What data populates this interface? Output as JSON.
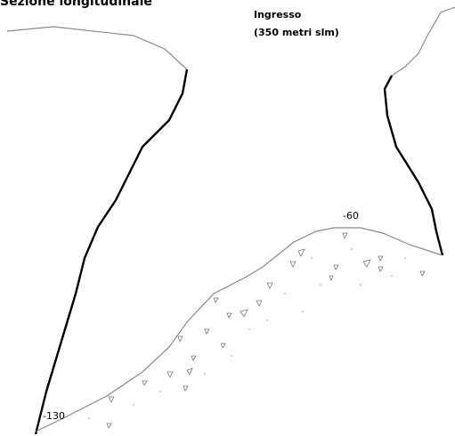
{
  "title": "Sezione longitudinale",
  "entrance": {
    "label": "Ingresso",
    "elevation": "(350 metri slm)"
  },
  "depth_labels": [
    "-60",
    "-130"
  ]
}
